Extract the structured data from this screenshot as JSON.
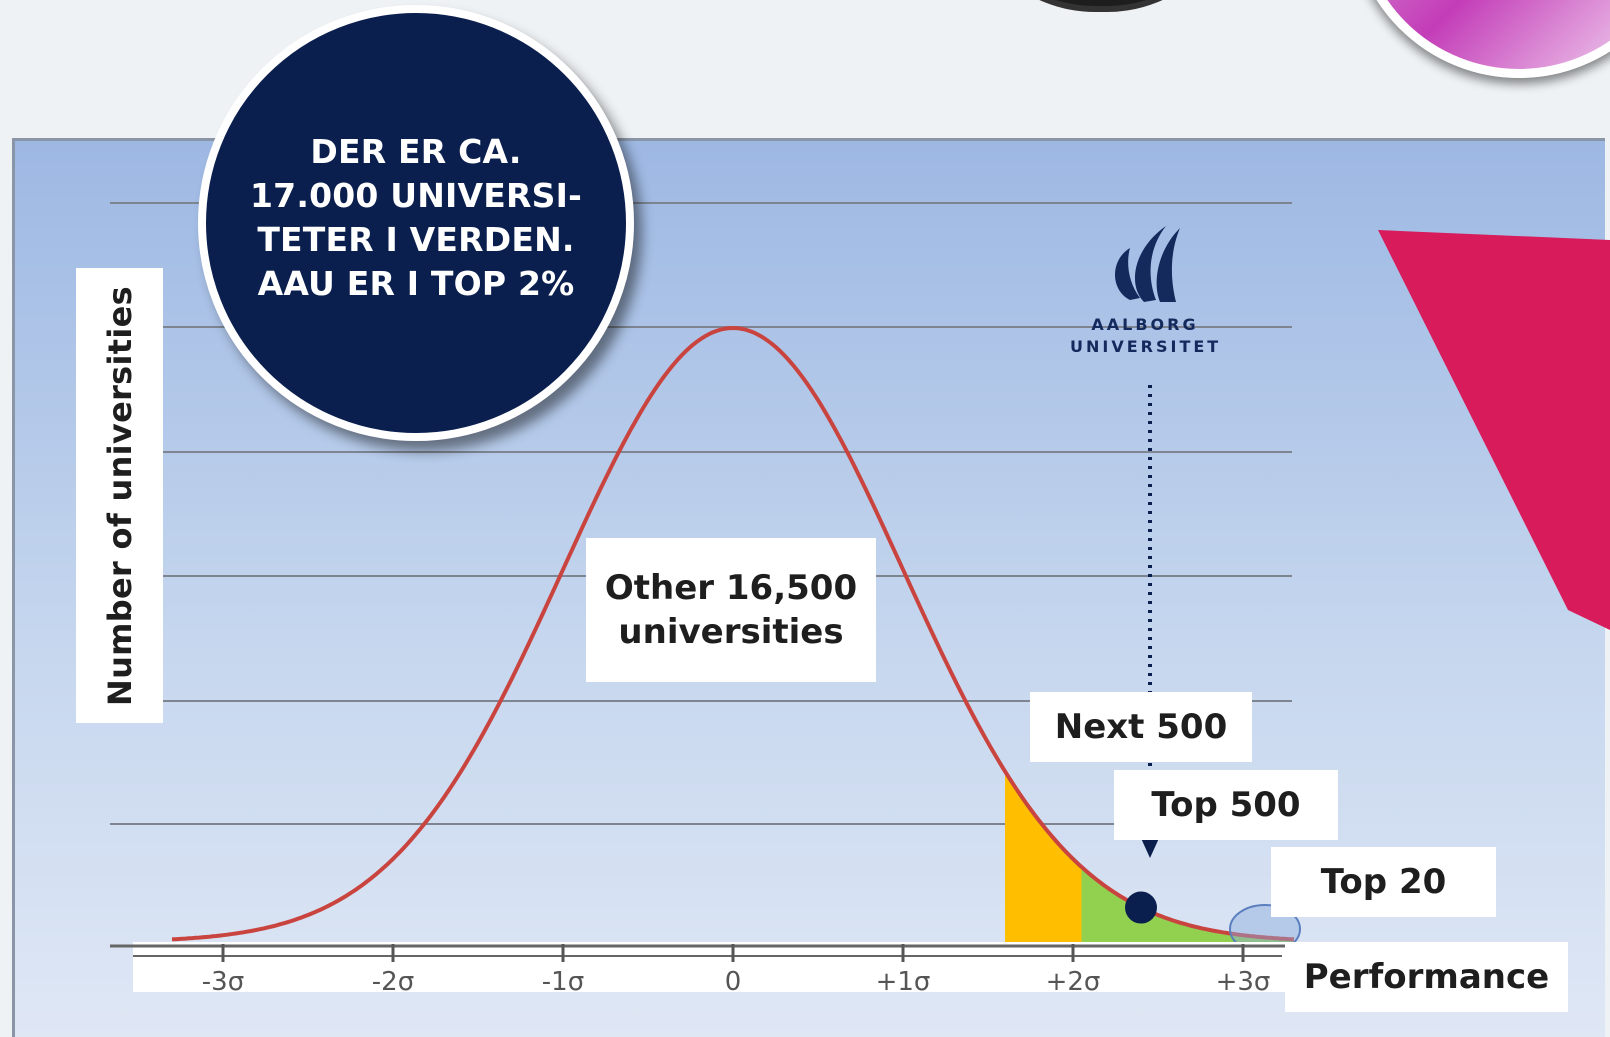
{
  "callout": {
    "text": "DER ER CA.\n17.000 UNIVERSI-\nTETER I VERDEN.\nAAU ER I TOP 2%"
  },
  "logo": {
    "line1": "AALBORG",
    "line2": "UNIVERSITET",
    "icon": "aau-wave-logo-icon"
  },
  "colors": {
    "curve": "#c9443f",
    "next500_fill": "#ffbf00",
    "top500_fill": "#92d050",
    "marker": "#0b1f4f",
    "accent_pink": "#d81b5a"
  },
  "chart_data": {
    "type": "area",
    "curve": "normal distribution",
    "ylabel": "Number of universities",
    "xlabel": "Performance",
    "x_ticks": [
      "-3σ",
      "-2σ",
      "-1σ",
      "0",
      "+1σ",
      "+2σ",
      "+3σ"
    ],
    "x_range": [
      -3.3,
      3.3
    ],
    "grid": true,
    "regions": [
      {
        "name": "Other 16,500 universities",
        "x_from": -3.3,
        "x_to": 1.6
      },
      {
        "name": "Next 500",
        "x_from": 1.6,
        "x_to": 2.05
      },
      {
        "name": "Top 500",
        "x_from": 2.05,
        "x_to": 3.0
      },
      {
        "name": "Top 20",
        "x_from": 3.0,
        "x_to": 3.3
      }
    ],
    "labels": {
      "other": "Other 16,500\nuniversities",
      "next500": "Next 500",
      "top500": "Top 500",
      "top20": "Top 20"
    },
    "marker": {
      "label": "AALBORG UNIVERSITET",
      "x": 2.4
    }
  }
}
